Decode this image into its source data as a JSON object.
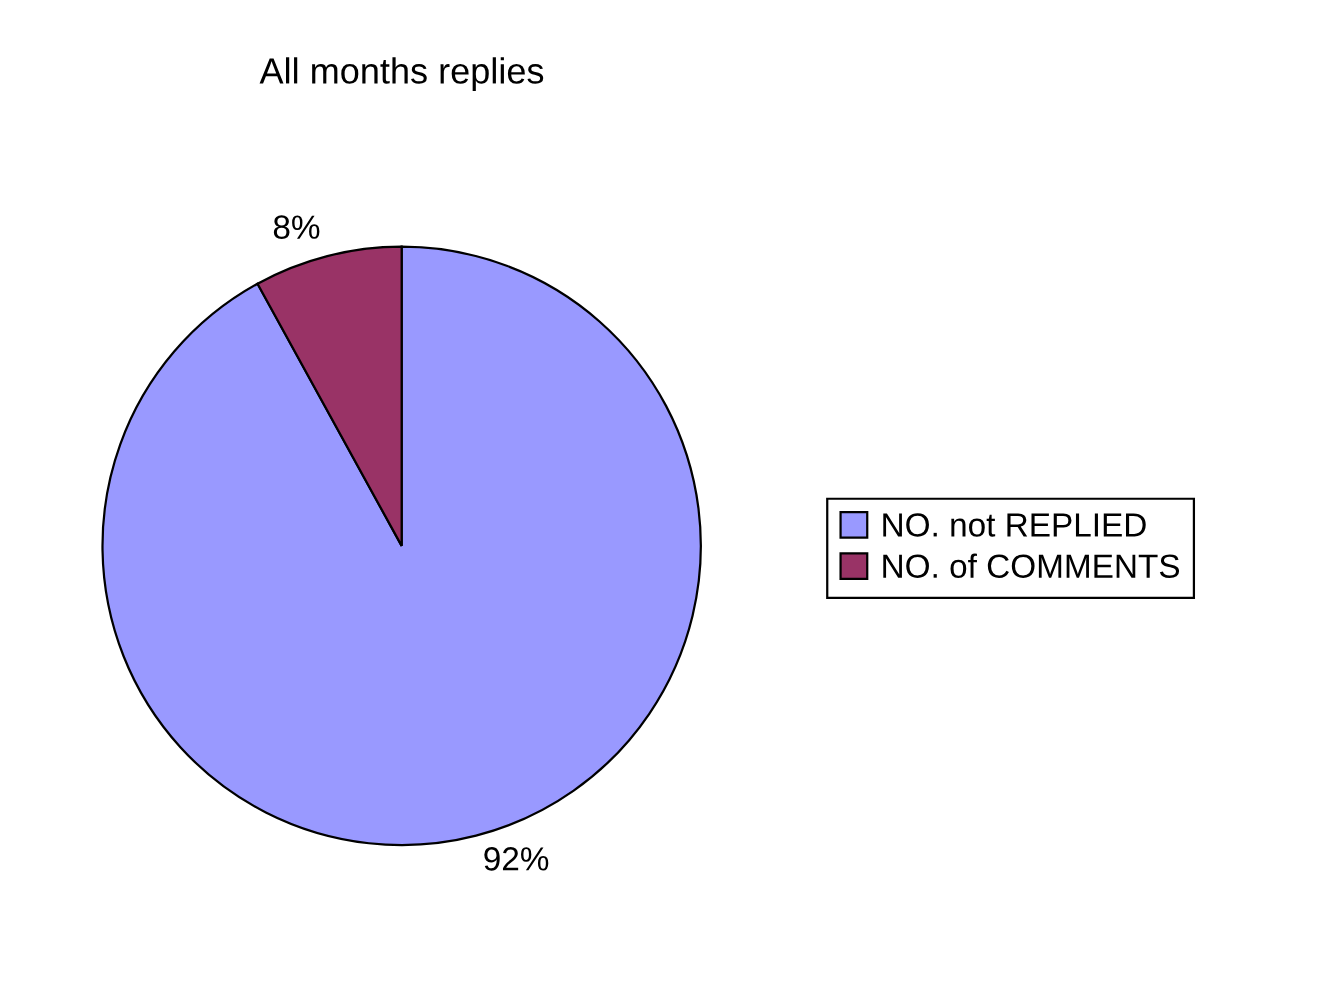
{
  "chart_data": {
    "type": "pie",
    "title": "All months replies",
    "categories": [
      "NO. not REPLIED",
      "NO. of COMMENTS"
    ],
    "values": [
      92,
      8
    ],
    "colors": [
      "#9999ff",
      "#993366"
    ],
    "value_labels": [
      "92%",
      "8%"
    ],
    "legend": "right"
  }
}
